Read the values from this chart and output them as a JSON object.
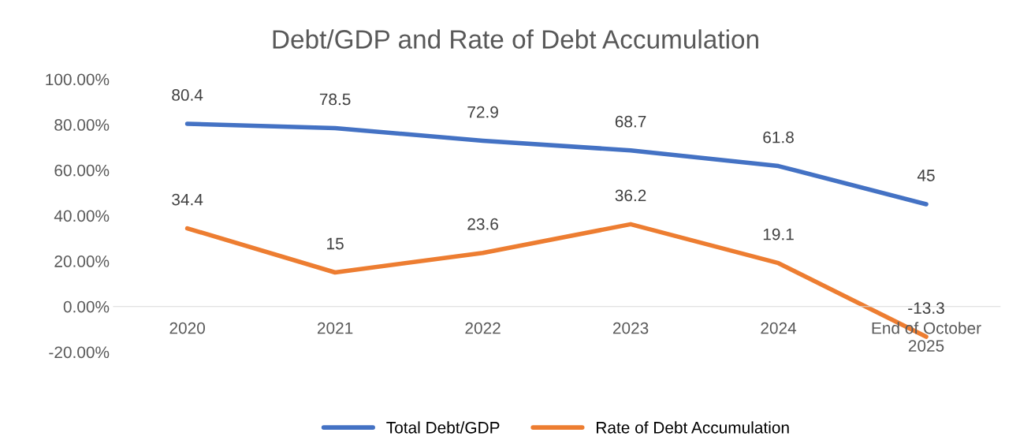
{
  "chart_data": {
    "type": "line",
    "title": "Debt/GDP and Rate of Debt Accumulation",
    "categories": [
      "2020",
      "2021",
      "2022",
      "2023",
      "2024",
      "End of October\n2025"
    ],
    "series": [
      {
        "name": "Total Debt/GDP",
        "color": "#4472c4",
        "values": [
          80.4,
          78.5,
          72.9,
          68.7,
          61.8,
          45
        ]
      },
      {
        "name": "Rate of Debt Accumulation",
        "color": "#ed7d31",
        "values": [
          34.4,
          15,
          23.6,
          36.2,
          19.1,
          -13.3
        ]
      }
    ],
    "ylim": [
      -20,
      100
    ],
    "yticks": [
      {
        "value": -20,
        "label": "-20.00%"
      },
      {
        "value": 0,
        "label": "0.00%"
      },
      {
        "value": 20,
        "label": "20.00%"
      },
      {
        "value": 40,
        "label": "40.00%"
      },
      {
        "value": 60,
        "label": "60.00%"
      },
      {
        "value": 80,
        "label": "80.00%"
      },
      {
        "value": 100,
        "label": "100.00%"
      }
    ],
    "data_labels": true,
    "grid": false,
    "legend": "bottom",
    "marker": "none",
    "line_style": "solid"
  }
}
